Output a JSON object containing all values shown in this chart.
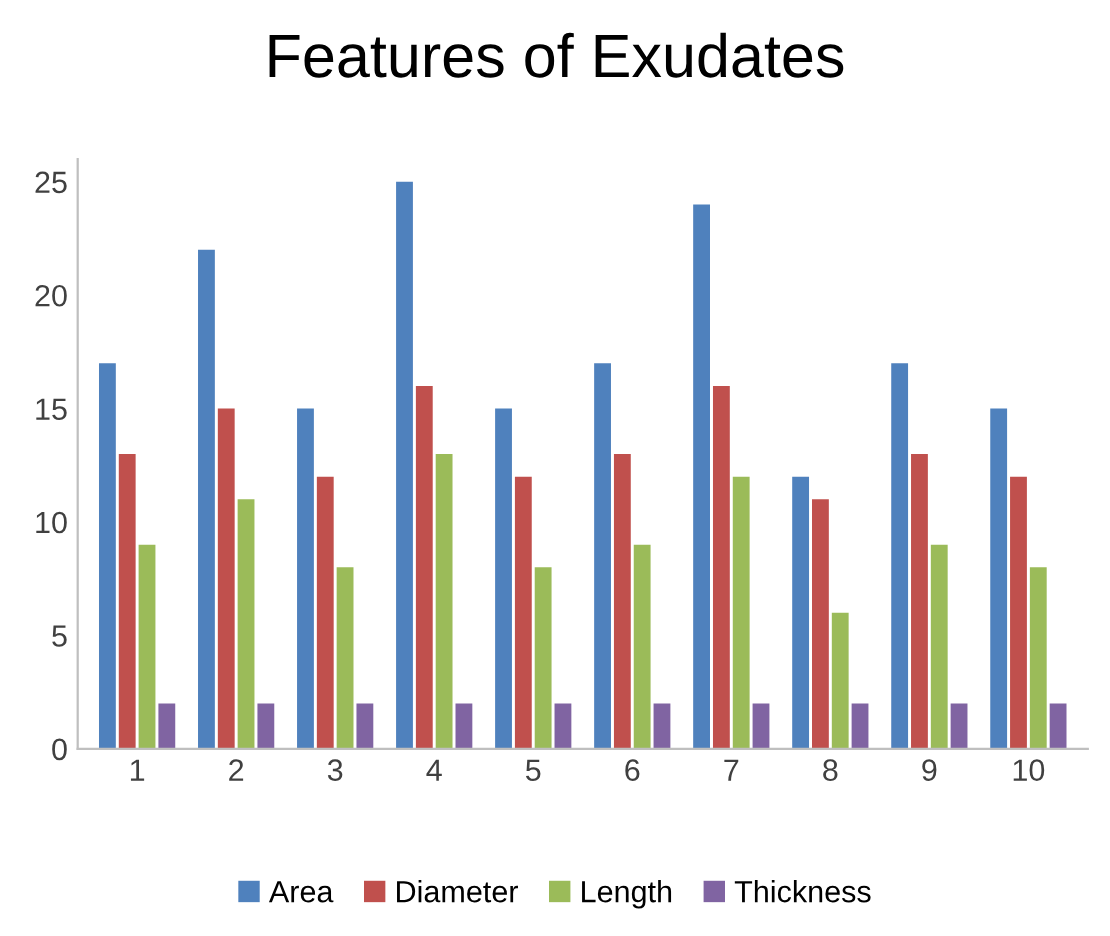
{
  "chart_data": {
    "type": "bar",
    "title": "Features of Exudates",
    "categories": [
      "1",
      "2",
      "3",
      "4",
      "5",
      "6",
      "7",
      "8",
      "9",
      "10"
    ],
    "series": [
      {
        "name": "Area",
        "color": "#4f81bd",
        "values": [
          17,
          22,
          15,
          25,
          15,
          17,
          24,
          12,
          17,
          15
        ]
      },
      {
        "name": "Diameter",
        "color": "#c0504d",
        "values": [
          13,
          15,
          12,
          16,
          12,
          13,
          16,
          11,
          13,
          12
        ]
      },
      {
        "name": "Length",
        "color": "#9bbb59",
        "values": [
          9,
          11,
          8,
          13,
          8,
          9,
          12,
          6,
          9,
          8
        ]
      },
      {
        "name": "Thickness",
        "color": "#8064a2",
        "values": [
          2,
          2,
          2,
          2,
          2,
          2,
          2,
          2,
          2,
          2
        ]
      }
    ],
    "ylim": [
      0,
      26
    ],
    "yticks": [
      0,
      5,
      10,
      15,
      20,
      25
    ],
    "grid": false,
    "legend": "bottom"
  }
}
